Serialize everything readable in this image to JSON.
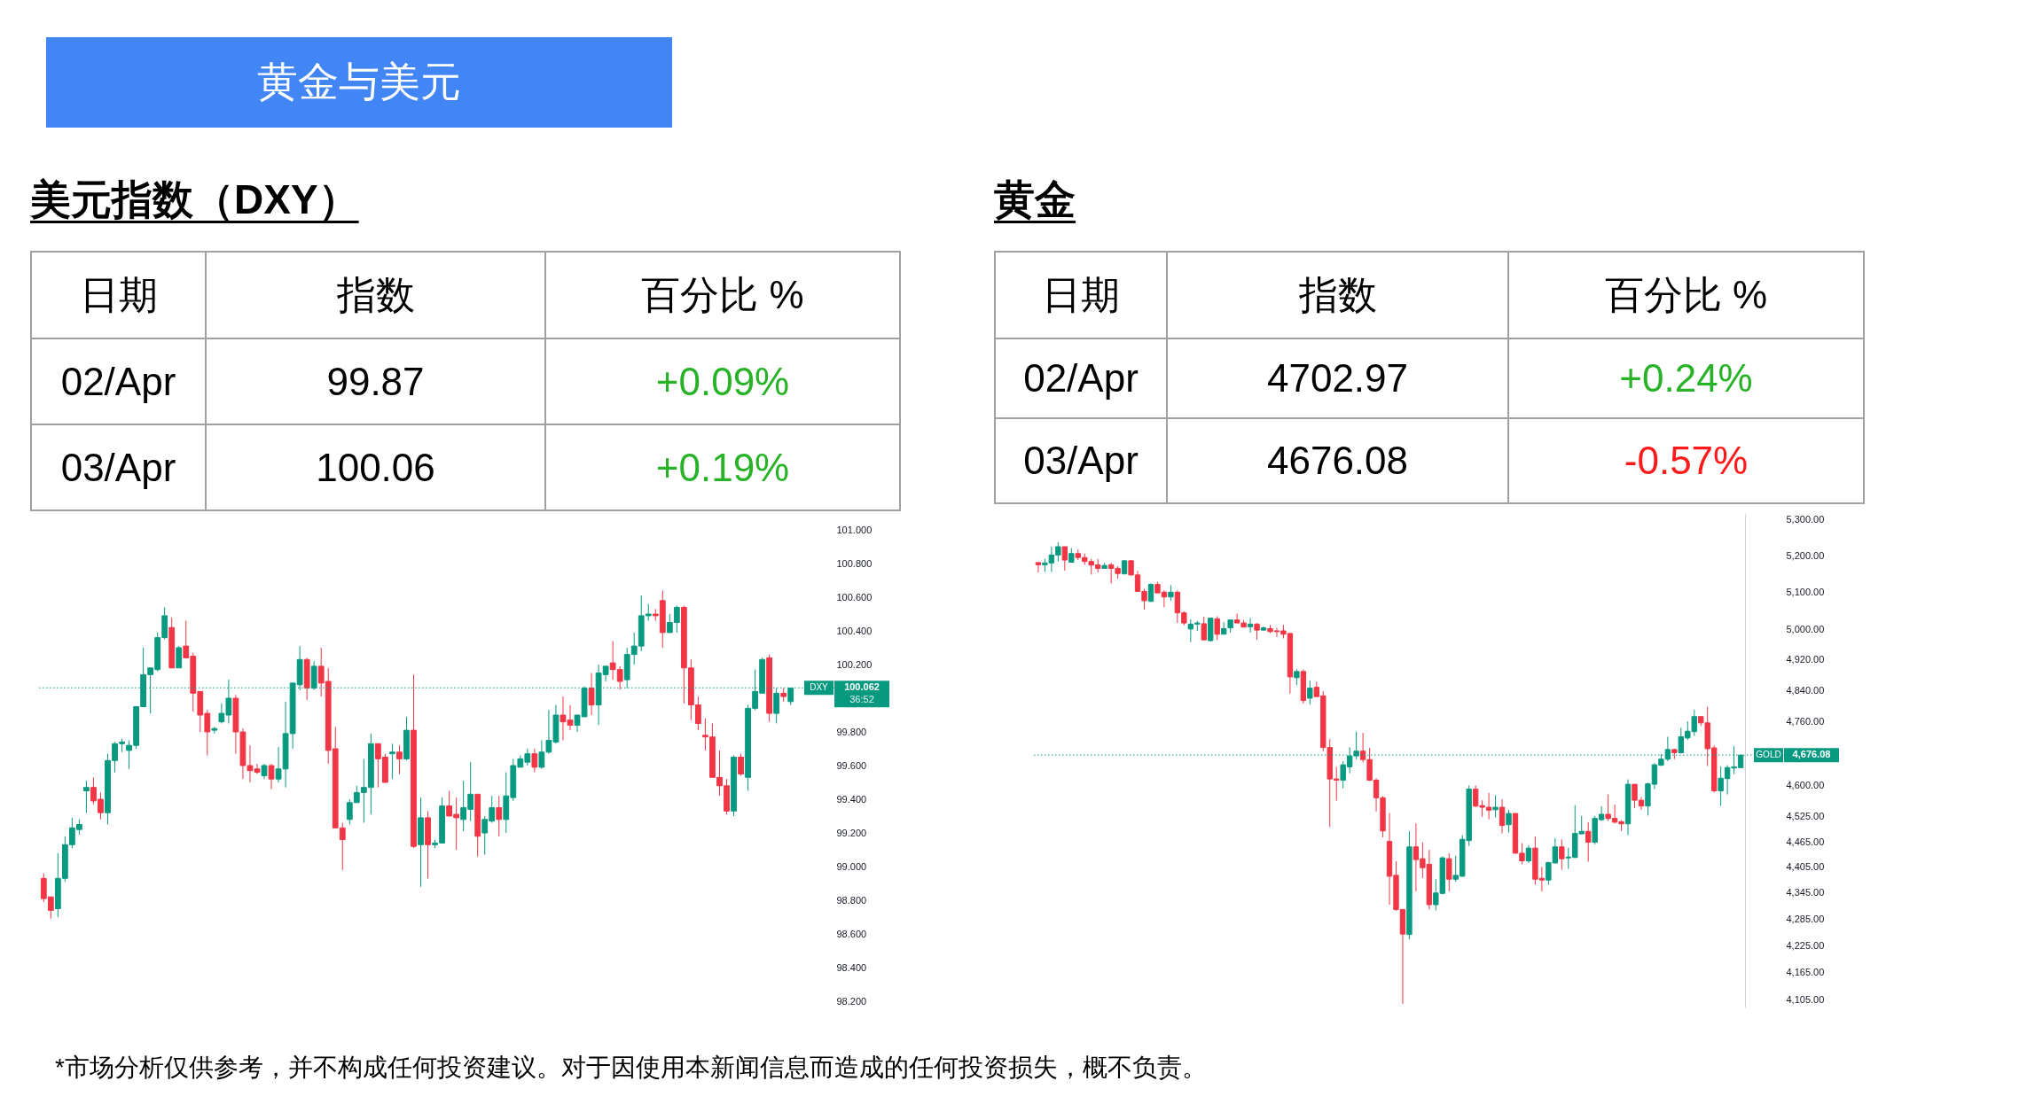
{
  "chart_data": [
    {
      "type": "other",
      "title": "黄金与美元",
      "color": "#4285f4",
      "annotations": [
        "*市场分析仅供参考，并不构成任何投资建议。对于因使用本新闻信息而造成的任何投资损失，概不负责。"
      ]
    },
    {
      "type": "other",
      "title": "美元指数（DXY）",
      "annotations": [
        "日期",
        "指数",
        "百分比 %",
        "02/Apr",
        "99.87",
        "+0.09%",
        "03/Apr",
        "100.06",
        "+0.19%"
      ],
      "colors": [
        "#000000",
        "#000000",
        "#000000",
        "#000000",
        "#000000",
        "#27b227",
        "#000000",
        "#000000",
        "#27b227"
      ]
    },
    {
      "type": "candlestick",
      "colors": [
        "#f23645",
        "#f23645",
        "#089981",
        "#089981",
        "#089981",
        "#089981",
        "#089981",
        "#f23645",
        "#f23645",
        "#089981",
        "#089981",
        "#089981",
        "#089981",
        "#089981",
        "#089981",
        "#089981",
        "#089981",
        "#089981",
        "#f23645",
        "#089981",
        "#f23645",
        "#f23645",
        "#f23645",
        "#f23645",
        "#089981",
        "#089981",
        "#089981",
        "#f23645",
        "#f23645",
        "#f23645",
        "#f23645",
        "#089981",
        "#f23645",
        "#089981",
        "#089981",
        "#089981",
        "#089981",
        "#f23645",
        "#089981",
        "#f23645",
        "#f23645",
        "#f23645",
        "#f23645",
        "#089981",
        "#089981",
        "#089981",
        "#089981",
        "#f23645",
        "#f23645",
        "#089981",
        "#f23645",
        "#089981",
        "#f23645",
        "#089981",
        "#f23645",
        "#089981",
        "#089981",
        "#f23645",
        "#f23645",
        "#089981",
        "#089981",
        "#f23645",
        "#089981",
        "#089981",
        "#f23645",
        "#089981",
        "#089981",
        "#089981",
        "#089981",
        "#f23645",
        "#089981",
        "#089981",
        "#089981",
        "#f23645",
        "#f23645",
        "#089981",
        "#089981",
        "#f23645",
        "#089981",
        "#089981",
        "#f23645",
        "#f23645",
        "#089981",
        "#089981",
        "#089981",
        "#089981",
        "#f23645",
        "#f23645",
        "#089981",
        "#089981",
        "#f23645",
        "#f23645",
        "#f23645",
        "#f23645",
        "#f23645",
        "#f23645",
        "#f23645",
        "#089981",
        "#f23645",
        "#089981",
        "#089981",
        "#089981",
        "#f23645",
        "#089981",
        "#f23645",
        "#089981"
      ],
      "ylim": [
        98.2,
        101
      ],
      "tick_labels": "y",
      "yticks": [
        {
          "value": 98.2,
          "label": "98.200"
        },
        {
          "value": 98.4,
          "label": "98.400"
        },
        {
          "value": 98.6,
          "label": "98.600"
        },
        {
          "value": 98.8,
          "label": "98.800"
        },
        {
          "value": 99,
          "label": "99.000"
        },
        {
          "value": 99.2,
          "label": "99.200"
        },
        {
          "value": 99.4,
          "label": "99.400"
        },
        {
          "value": 99.6,
          "label": "99.600"
        },
        {
          "value": 99.8,
          "label": "99.800"
        },
        {
          "value": 100.2,
          "label": "100.200"
        },
        {
          "value": 100.4,
          "label": "100.400"
        },
        {
          "value": 100.6,
          "label": "100.600"
        },
        {
          "value": 100.8,
          "label": "100.800"
        },
        {
          "value": 101,
          "label": "101.000"
        }
      ],
      "ref_lines": [
        {
          "axis": "y",
          "value": 100.062,
          "label": "100.062",
          "color": "#089981",
          "line_style": "dotted"
        }
      ],
      "annotations": [
        "DXY",
        "36:52"
      ],
      "categories": [
        null,
        null,
        null,
        null,
        null,
        null,
        null,
        null,
        null,
        null,
        null,
        null,
        null,
        null,
        null,
        null,
        null,
        null,
        null,
        null,
        null,
        null,
        null,
        null,
        null,
        null,
        null,
        null,
        null,
        null,
        null,
        null,
        null,
        null,
        null,
        null,
        null,
        null,
        null,
        null,
        null,
        null,
        null,
        null,
        null,
        null,
        null,
        null,
        null,
        null,
        null,
        null,
        null,
        null,
        null,
        null,
        null,
        null,
        null,
        null,
        null,
        null,
        null,
        null,
        null,
        null,
        null,
        null,
        null,
        null,
        null,
        null,
        null,
        null,
        null,
        null,
        null,
        null,
        null,
        null,
        null,
        null,
        null,
        null,
        null,
        null,
        null,
        null,
        null,
        null,
        null,
        null,
        null,
        null,
        null,
        null,
        null,
        null,
        null,
        null,
        null,
        null,
        null,
        null,
        null,
        null
      ],
      "ohlc": [
        [
          98.93,
          98.96,
          98.79,
          98.81
        ],
        [
          98.82,
          98.82,
          98.69,
          98.74
        ],
        [
          98.75,
          99.08,
          98.7,
          98.93
        ],
        [
          98.93,
          99.18,
          98.91,
          99.13
        ],
        [
          99.13,
          99.29,
          99.11,
          99.23
        ],
        [
          99.22,
          99.28,
          99.19,
          99.25
        ],
        [
          99.45,
          99.51,
          99.32,
          99.47
        ],
        [
          99.47,
          99.53,
          99.37,
          99.39
        ],
        [
          99.4,
          99.44,
          99.28,
          99.32
        ],
        [
          99.32,
          99.67,
          99.25,
          99.63
        ],
        [
          99.63,
          99.74,
          99.56,
          99.73
        ],
        [
          99.73,
          99.76,
          99.68,
          99.74
        ],
        [
          99.69,
          99.75,
          99.58,
          99.72
        ],
        [
          99.72,
          99.95,
          99.7,
          99.95
        ],
        [
          99.95,
          100.3,
          99.95,
          100.14
        ],
        [
          100.14,
          100.18,
          99.91,
          100.18
        ],
        [
          100.17,
          100.39,
          100.16,
          100.36
        ],
        [
          100.36,
          100.54,
          100.35,
          100.49
        ],
        [
          100.42,
          100.48,
          100.18,
          100.18
        ],
        [
          100.18,
          100.31,
          100.18,
          100.3
        ],
        [
          100.31,
          100.46,
          100.24,
          100.24
        ],
        [
          100.25,
          100.27,
          99.92,
          100.03
        ],
        [
          100.04,
          100.04,
          99.8,
          99.9
        ],
        [
          99.91,
          99.93,
          99.66,
          99.8
        ],
        [
          99.81,
          99.83,
          99.79,
          99.82
        ],
        [
          99.86,
          99.97,
          99.85,
          99.91
        ],
        [
          99.9,
          100.11,
          99.85,
          100.0
        ],
        [
          100.0,
          100.02,
          99.67,
          99.8
        ],
        [
          99.8,
          99.82,
          99.52,
          99.6
        ],
        [
          99.6,
          99.72,
          99.5,
          99.57
        ],
        [
          99.58,
          99.61,
          99.55,
          99.56
        ],
        [
          99.54,
          99.61,
          99.52,
          99.6
        ],
        [
          99.6,
          99.61,
          99.46,
          99.52
        ],
        [
          99.52,
          99.71,
          99.5,
          99.58
        ],
        [
          99.58,
          99.98,
          99.47,
          99.79
        ],
        [
          99.79,
          100.09,
          99.7,
          100.09
        ],
        [
          100.08,
          100.31,
          100.05,
          100.23
        ],
        [
          100.23,
          100.24,
          99.99,
          100.06
        ],
        [
          100.06,
          100.22,
          100.05,
          100.19
        ],
        [
          100.19,
          100.3,
          100.01,
          100.09
        ],
        [
          100.1,
          100.18,
          99.61,
          99.69
        ],
        [
          99.7,
          99.83,
          99.23,
          99.23
        ],
        [
          99.23,
          99.26,
          98.98,
          99.16
        ],
        [
          99.28,
          99.4,
          99.25,
          99.38
        ],
        [
          99.38,
          99.48,
          99.38,
          99.44
        ],
        [
          99.44,
          99.64,
          99.26,
          99.47
        ],
        [
          99.47,
          99.79,
          99.31,
          99.73
        ],
        [
          99.73,
          99.73,
          99.47,
          99.64
        ],
        [
          99.65,
          99.67,
          99.5,
          99.5
        ],
        [
          99.67,
          99.73,
          99.52,
          99.68
        ],
        [
          99.68,
          99.72,
          99.55,
          99.64
        ],
        [
          99.64,
          99.89,
          99.63,
          99.81
        ],
        [
          99.81,
          100.14,
          99.11,
          99.12
        ],
        [
          99.13,
          99.41,
          98.88,
          99.29
        ],
        [
          99.29,
          99.33,
          98.93,
          99.13
        ],
        [
          99.13,
          99.16,
          99.11,
          99.14
        ],
        [
          99.14,
          99.41,
          99.14,
          99.36
        ],
        [
          99.36,
          99.45,
          99.3,
          99.3
        ],
        [
          99.31,
          99.41,
          99.1,
          99.29
        ],
        [
          99.28,
          99.51,
          99.21,
          99.35
        ],
        [
          99.34,
          99.62,
          99.27,
          99.43
        ],
        [
          99.43,
          99.43,
          99.06,
          99.18
        ],
        [
          99.2,
          99.3,
          99.07,
          99.28
        ],
        [
          99.27,
          99.42,
          99.26,
          99.35
        ],
        [
          99.35,
          99.42,
          99.18,
          99.28
        ],
        [
          99.28,
          99.56,
          99.2,
          99.42
        ],
        [
          99.41,
          99.64,
          99.39,
          99.6
        ],
        [
          99.59,
          99.66,
          99.59,
          99.64
        ],
        [
          99.62,
          99.7,
          99.6,
          99.67
        ],
        [
          99.67,
          99.7,
          99.56,
          99.59
        ],
        [
          99.59,
          99.75,
          99.58,
          99.68
        ],
        [
          99.68,
          99.93,
          99.67,
          99.75
        ],
        [
          99.74,
          99.96,
          99.73,
          99.9
        ],
        [
          99.9,
          100.01,
          99.75,
          99.86
        ],
        [
          99.87,
          99.96,
          99.81,
          99.84
        ],
        [
          99.84,
          99.9,
          99.8,
          99.9
        ],
        [
          99.89,
          100.07,
          99.89,
          100.06
        ],
        [
          100.06,
          100.15,
          99.9,
          99.96
        ],
        [
          99.96,
          100.2,
          99.84,
          100.15
        ],
        [
          100.14,
          100.19,
          100.1,
          100.19
        ],
        [
          100.21,
          100.34,
          100.11,
          100.17
        ],
        [
          100.17,
          100.19,
          100.05,
          100.1
        ],
        [
          100.11,
          100.3,
          100.06,
          100.26
        ],
        [
          100.26,
          100.39,
          100.2,
          100.31
        ],
        [
          100.31,
          100.61,
          100.28,
          100.49
        ],
        [
          100.49,
          100.56,
          100.46,
          100.5
        ],
        [
          100.5,
          100.53,
          100.46,
          100.49
        ],
        [
          100.58,
          100.64,
          100.3,
          100.39
        ],
        [
          100.39,
          100.5,
          100.39,
          100.45
        ],
        [
          100.45,
          100.55,
          100.39,
          100.54
        ],
        [
          100.54,
          100.55,
          99.97,
          100.18
        ],
        [
          100.18,
          100.23,
          99.87,
          99.96
        ],
        [
          99.96,
          100.01,
          99.81,
          99.85
        ],
        [
          99.78,
          99.88,
          99.69,
          99.77
        ],
        [
          99.77,
          99.85,
          99.53,
          99.53
        ],
        [
          99.53,
          99.69,
          99.42,
          99.48
        ],
        [
          99.48,
          99.52,
          99.31,
          99.33
        ],
        [
          99.33,
          99.66,
          99.3,
          99.65
        ],
        [
          99.65,
          99.67,
          99.54,
          99.55
        ],
        [
          99.53,
          99.96,
          99.45,
          99.94
        ],
        [
          99.94,
          100.17,
          99.93,
          100.04
        ],
        [
          100.03,
          100.24,
          100.03,
          100.23
        ],
        [
          100.24,
          100.26,
          99.86,
          99.91
        ],
        [
          99.91,
          100.06,
          99.85,
          100.03
        ],
        [
          100.03,
          100.06,
          99.98,
          100.01
        ],
        [
          99.98,
          100.06,
          99.96,
          100.06
        ]
      ]
    },
    {
      "type": "other",
      "title": "黄金",
      "annotations": [
        "日期",
        "指数",
        "百分比 %",
        "02/Apr",
        "4702.97",
        "+0.24%",
        "03/Apr",
        "4676.08",
        "-0.57%"
      ],
      "colors": [
        "#000000",
        "#000000",
        "#000000",
        "#000000",
        "#000000",
        "#27b227",
        "#000000",
        "#000000",
        "#ff1a1a"
      ]
    },
    {
      "type": "candlestick",
      "colors": [
        "#f23645",
        "#089981",
        "#089981",
        "#089981",
        "#f23645",
        "#089981",
        "#f23645",
        "#f23645",
        "#f23645",
        "#f23645",
        "#089981",
        "#f23645",
        "#f23645",
        "#089981",
        "#f23645",
        "#f23645",
        "#f23645",
        "#089981",
        "#f23645",
        "#f23645",
        "#089981",
        "#f23645",
        "#f23645",
        "#089981",
        "#089981",
        "#f23645",
        "#089981",
        "#f23645",
        "#089981",
        "#089981",
        "#f23645",
        "#f23645",
        "#089981",
        "#f23645",
        "#089981",
        "#f23645",
        "#f23645",
        "#f23645",
        "#f23645",
        "#089981",
        "#f23645",
        "#089981",
        "#f23645",
        "#f23645",
        "#f23645",
        "#f23645",
        "#089981",
        "#089981",
        "#089981",
        "#f23645",
        "#f23645",
        "#f23645",
        "#f23645",
        "#f23645",
        "#f23645",
        "#f23645",
        "#089981",
        "#f23645",
        "#f23645",
        "#f23645",
        "#089981",
        "#089981",
        "#f23645",
        "#089981",
        "#089981",
        "#089981",
        "#f23645",
        "#f23645",
        "#f23645",
        "#089981",
        "#f23645",
        "#089981",
        "#f23645",
        "#f23645",
        "#089981",
        "#f23645",
        "#f23645",
        "#089981",
        "#089981",
        "#f23645",
        "#089981",
        "#089981",
        "#089981",
        "#f23645",
        "#089981",
        "#089981",
        "#f23645",
        "#f23645",
        "#f23645",
        "#089981",
        "#f23645",
        "#f23645",
        "#089981",
        "#089981",
        "#089981",
        "#089981",
        "#f23645",
        "#089981",
        "#089981",
        "#089981",
        "#f23645",
        "#f23645",
        "#f23645",
        "#089981",
        "#089981",
        "#089981",
        "#089981"
      ],
      "ylim": [
        4088,
        5317
      ],
      "log": "y",
      "tick_labels": "y",
      "yticks": [
        {
          "value": 4105,
          "label": "4,105.00"
        },
        {
          "value": 4165,
          "label": "4,165.00"
        },
        {
          "value": 4225,
          "label": "4,225.00"
        },
        {
          "value": 4285,
          "label": "4,285.00"
        },
        {
          "value": 4345,
          "label": "4,345.00"
        },
        {
          "value": 4405,
          "label": "4,405.00"
        },
        {
          "value": 4465,
          "label": "4,465.00"
        },
        {
          "value": 4525,
          "label": "4,525.00"
        },
        {
          "value": 4600,
          "label": "4,600.00"
        },
        {
          "value": 4760,
          "label": "4,760.00"
        },
        {
          "value": 4840,
          "label": "4,840.00"
        },
        {
          "value": 4920,
          "label": "4,920.00"
        },
        {
          "value": 5000,
          "label": "5,000.00"
        },
        {
          "value": 5100,
          "label": "5,100.00"
        },
        {
          "value": 5200,
          "label": "5,200.00"
        },
        {
          "value": 5300,
          "label": "5,300.00"
        }
      ],
      "ref_lines": [
        {
          "axis": "y",
          "value": 4676.08,
          "label": "4,676.08",
          "color": "#089981",
          "line_style": "dotted"
        }
      ],
      "annotations": [
        "GOLD"
      ],
      "categories": [
        null,
        null,
        null,
        null,
        null,
        null,
        null,
        null,
        null,
        null,
        null,
        null,
        null,
        null,
        null,
        null,
        null,
        null,
        null,
        null,
        null,
        null,
        null,
        null,
        null,
        null,
        null,
        null,
        null,
        null,
        null,
        null,
        null,
        null,
        null,
        null,
        null,
        null,
        null,
        null,
        null,
        null,
        null,
        null,
        null,
        null,
        null,
        null,
        null,
        null,
        null,
        null,
        null,
        null,
        null,
        null,
        null,
        null,
        null,
        null,
        null,
        null,
        null,
        null,
        null,
        null,
        null,
        null,
        null,
        null,
        null,
        null,
        null,
        null,
        null,
        null,
        null,
        null,
        null,
        null,
        null,
        null,
        null,
        null,
        null,
        null,
        null,
        null,
        null,
        null,
        null,
        null,
        null,
        null,
        null,
        null,
        null,
        null,
        null,
        null,
        null,
        null,
        null,
        null,
        null,
        null,
        null
      ],
      "ohlc": [
        [
          5181,
          5181,
          5154,
          5175
        ],
        [
          5175,
          5191,
          5156,
          5180
        ],
        [
          5180,
          5225,
          5155,
          5202
        ],
        [
          5202,
          5237,
          5184,
          5225
        ],
        [
          5225,
          5225,
          5159,
          5188
        ],
        [
          5182,
          5221,
          5182,
          5206
        ],
        [
          5206,
          5217,
          5188,
          5195
        ],
        [
          5195,
          5206,
          5175,
          5184
        ],
        [
          5184,
          5191,
          5148,
          5174
        ],
        [
          5175,
          5191,
          5154,
          5165
        ],
        [
          5165,
          5180,
          5165,
          5173
        ],
        [
          5175,
          5180,
          5124,
          5165
        ],
        [
          5165,
          5171,
          5137,
          5151
        ],
        [
          5150,
          5188,
          5148,
          5186
        ],
        [
          5186,
          5188,
          5145,
          5147
        ],
        [
          5147,
          5158,
          5102,
          5102
        ],
        [
          5102,
          5109,
          5053,
          5077
        ],
        [
          5075,
          5124,
          5074,
          5121
        ],
        [
          5121,
          5128,
          5098,
          5098
        ],
        [
          5100,
          5105,
          5059,
          5087
        ],
        [
          5087,
          5119,
          5077,
          5100
        ],
        [
          5100,
          5105,
          5017,
          5044
        ],
        [
          5044,
          5048,
          5011,
          5017
        ],
        [
          5001,
          5027,
          4966,
          5014
        ],
        [
          5014,
          5023,
          4996,
          5017
        ],
        [
          5015,
          5034,
          4972,
          4972
        ],
        [
          4970,
          5031,
          4968,
          5030
        ],
        [
          5028,
          5035,
          4972,
          4987
        ],
        [
          4987,
          5019,
          4987,
          5002
        ],
        [
          5004,
          5025,
          4991,
          5025
        ],
        [
          5025,
          5042,
          5017,
          5017
        ],
        [
          5017,
          5025,
          5006,
          5006
        ],
        [
          5007,
          5030,
          4991,
          5014
        ],
        [
          5014,
          5017,
          4972,
          4998
        ],
        [
          4998,
          5008,
          4996,
          5004
        ],
        [
          5002,
          5012,
          4990,
          4994
        ],
        [
          4996,
          5004,
          4980,
          4994
        ],
        [
          4996,
          5012,
          4976,
          4987
        ],
        [
          4989,
          4989,
          4832,
          4875
        ],
        [
          4873,
          4895,
          4854,
          4889
        ],
        [
          4889,
          4894,
          4806,
          4814
        ],
        [
          4820,
          4865,
          4804,
          4846
        ],
        [
          4848,
          4862,
          4824,
          4824
        ],
        [
          4826,
          4838,
          4686,
          4695
        ],
        [
          4695,
          4716,
          4500,
          4617
        ],
        [
          4617,
          4647,
          4564,
          4614
        ],
        [
          4614,
          4661,
          4594,
          4652
        ],
        [
          4647,
          4696,
          4631,
          4674
        ],
        [
          4674,
          4735,
          4666,
          4686
        ],
        [
          4686,
          4732,
          4658,
          4665
        ],
        [
          4665,
          4694,
          4612,
          4614
        ],
        [
          4614,
          4619,
          4538,
          4571
        ],
        [
          4571,
          4575,
          4476,
          4491
        ],
        [
          4466,
          4534,
          4318,
          4384
        ],
        [
          4386,
          4419,
          4304,
          4307
        ],
        [
          4307,
          4307,
          4096,
          4251
        ],
        [
          4250,
          4490,
          4239,
          4453
        ],
        [
          4453,
          4509,
          4349,
          4423
        ],
        [
          4425,
          4464,
          4380,
          4404
        ],
        [
          4412,
          4446,
          4307,
          4318
        ],
        [
          4318,
          4377,
          4305,
          4345
        ],
        [
          4344,
          4431,
          4342,
          4427
        ],
        [
          4425,
          4438,
          4349,
          4377
        ],
        [
          4377,
          4432,
          4371,
          4386
        ],
        [
          4384,
          4481,
          4382,
          4471
        ],
        [
          4468,
          4601,
          4455,
          4592
        ],
        [
          4592,
          4601,
          4548,
          4551
        ],
        [
          4552,
          4565,
          4525,
          4548
        ],
        [
          4548,
          4583,
          4519,
          4541
        ],
        [
          4542,
          4577,
          4523,
          4548
        ],
        [
          4548,
          4567,
          4485,
          4504
        ],
        [
          4506,
          4542,
          4487,
          4533
        ],
        [
          4533,
          4533,
          4438,
          4438
        ],
        [
          4438,
          4462,
          4412,
          4420
        ],
        [
          4420,
          4457,
          4415,
          4450
        ],
        [
          4450,
          4478,
          4364,
          4377
        ],
        [
          4379,
          4406,
          4349,
          4375
        ],
        [
          4375,
          4418,
          4364,
          4416
        ],
        [
          4415,
          4474,
          4414,
          4453
        ],
        [
          4453,
          4471,
          4399,
          4425
        ],
        [
          4427,
          4451,
          4401,
          4429
        ],
        [
          4428,
          4553,
          4427,
          4485
        ],
        [
          4484,
          4527,
          4484,
          4490
        ],
        [
          4490,
          4512,
          4418,
          4464
        ],
        [
          4464,
          4527,
          4459,
          4521
        ],
        [
          4518,
          4550,
          4515,
          4531
        ],
        [
          4531,
          4579,
          4515,
          4521
        ],
        [
          4521,
          4555,
          4509,
          4512
        ],
        [
          4513,
          4517,
          4491,
          4508
        ],
        [
          4508,
          4616,
          4481,
          4604
        ],
        [
          4604,
          4604,
          4546,
          4565
        ],
        [
          4565,
          4573,
          4542,
          4551
        ],
        [
          4551,
          4608,
          4528,
          4605
        ],
        [
          4604,
          4656,
          4592,
          4652
        ],
        [
          4651,
          4678,
          4649,
          4666
        ],
        [
          4666,
          4722,
          4661,
          4690
        ],
        [
          4690,
          4692,
          4666,
          4682
        ],
        [
          4682,
          4745,
          4680,
          4722
        ],
        [
          4719,
          4761,
          4714,
          4736
        ],
        [
          4735,
          4790,
          4724,
          4773
        ],
        [
          4773,
          4773,
          4749,
          4757
        ],
        [
          4757,
          4798,
          4649,
          4692
        ],
        [
          4694,
          4700,
          4584,
          4588
        ],
        [
          4588,
          4648,
          4552,
          4619
        ],
        [
          4618,
          4651,
          4579,
          4645
        ],
        [
          4644,
          4698,
          4629,
          4647
        ],
        [
          4645,
          4678,
          4644,
          4676
        ]
      ]
    }
  ]
}
